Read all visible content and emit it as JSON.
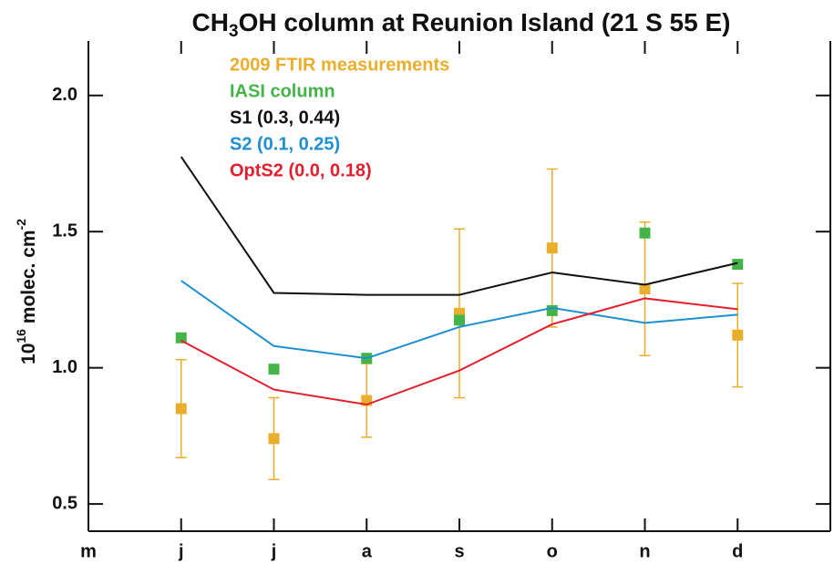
{
  "chart_data": {
    "type": "line",
    "title": [
      "CH",
      "3",
      "OH column at Reunion Island (21 S 55 E)"
    ],
    "y_label": [
      "10",
      "16",
      " molec. cm",
      "-2"
    ],
    "categories": [
      "m",
      "j",
      "j",
      "a",
      "s",
      "o",
      "n",
      "d"
    ],
    "ylim": [
      0.4,
      2.2
    ],
    "yticks": [
      {
        "value": 0.5,
        "label": "0.5"
      },
      {
        "value": 1.0,
        "label": "1.0"
      },
      {
        "value": 1.5,
        "label": "1.5"
      },
      {
        "value": 2.0,
        "label": "2.0"
      }
    ],
    "series": [
      {
        "name": "2009 FTIR measurements",
        "color": "#e8ae2c",
        "mode": "markers",
        "values": [
          null,
          0.85,
          0.74,
          0.88,
          1.2,
          1.44,
          1.29,
          1.12
        ],
        "errors": [
          null,
          0.18,
          0.15,
          0.135,
          0.31,
          0.29,
          0.245,
          0.19
        ]
      },
      {
        "name": "IASI column",
        "color": "#44b449",
        "mode": "markers",
        "values": [
          null,
          1.11,
          0.995,
          1.035,
          1.175,
          1.21,
          1.495,
          1.38
        ]
      },
      {
        "name": "S1 (0.3, 0.44)",
        "color": "#111111",
        "mode": "lines",
        "values": [
          null,
          1.775,
          1.275,
          1.268,
          1.268,
          1.35,
          1.305,
          1.385
        ]
      },
      {
        "name": "S2 (0.1, 0.25)",
        "color": "#1e8fd0",
        "mode": "lines",
        "values": [
          null,
          1.32,
          1.08,
          1.035,
          1.15,
          1.22,
          1.165,
          1.195
        ]
      },
      {
        "name": "OptS2 (0.0, 0.18)",
        "color": "#e0202e",
        "mode": "lines",
        "values": [
          null,
          1.1,
          0.92,
          0.865,
          0.99,
          1.16,
          1.255,
          1.215
        ]
      }
    ]
  }
}
